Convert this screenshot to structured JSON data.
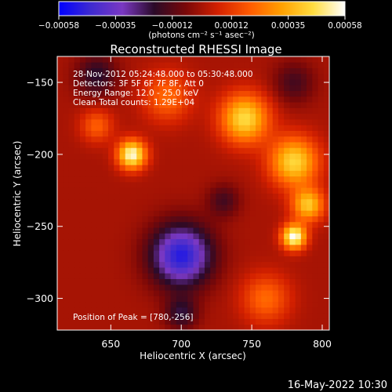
{
  "chart_data": {
    "type": "heatmap",
    "title": "Reconstructed RHESSI Image",
    "xlabel": "Heliocentric X (arcsec)",
    "ylabel": "Heliocentric Y (arcsec)",
    "xlim": [
      612,
      805
    ],
    "ylim": [
      -322,
      -132
    ],
    "x_ticks": [
      {
        "value": 650,
        "label": "650"
      },
      {
        "value": 700,
        "label": "700"
      },
      {
        "value": 750,
        "label": "750"
      },
      {
        "value": 800,
        "label": "800"
      }
    ],
    "y_ticks": [
      {
        "value": -150,
        "label": "−150"
      },
      {
        "value": -200,
        "label": "−200"
      },
      {
        "value": -250,
        "label": "−250"
      },
      {
        "value": -300,
        "label": "−300"
      }
    ],
    "colorbar": {
      "range": [
        -0.00058,
        0.00058
      ],
      "ticks": [
        {
          "value": -0.00058,
          "label": "−0.00058"
        },
        {
          "value": -0.00035,
          "label": "−0.00035"
        },
        {
          "value": -0.00012,
          "label": "−0.00012"
        },
        {
          "value": 0.00012,
          "label": "0.00012"
        },
        {
          "value": 0.00035,
          "label": "0.00035"
        },
        {
          "value": 0.00058,
          "label": "0.00058"
        }
      ],
      "unit_label": "(photons cm⁻² s⁻¹ asec⁻²)",
      "colormap": [
        "#0000ff",
        "#3e2ad0",
        "#7a38c2",
        "#2a0a28",
        "#7a0808",
        "#d32000",
        "#ff5a00",
        "#ffa000",
        "#ffdd40",
        "#ffffff"
      ]
    },
    "annotations": [
      "28-Nov-2012 05:24:48.000 to 05:30:48.000",
      "Detectors: 3F 5F 6F 7F 8F, Att 0",
      "Energy Range: 12.0 - 25.0 keV",
      "Clean     Total counts: 1.29E+04"
    ],
    "peak_label": "Position of Peak = [780,-256]",
    "peak": [
      780,
      -256
    ],
    "grid_size": [
      48,
      48
    ],
    "blobs": [
      {
        "x": 665,
        "y": -200,
        "amp": 0.00056,
        "sigma": 7
      },
      {
        "x": 780,
        "y": -257,
        "amp": 0.00058,
        "sigma": 6
      },
      {
        "x": 745,
        "y": -175,
        "amp": 0.00045,
        "sigma": 12
      },
      {
        "x": 780,
        "y": -205,
        "amp": 0.00044,
        "sigma": 12
      },
      {
        "x": 790,
        "y": -235,
        "amp": 0.0004,
        "sigma": 8
      },
      {
        "x": 690,
        "y": -160,
        "amp": 0.00022,
        "sigma": 12
      },
      {
        "x": 640,
        "y": -180,
        "amp": 0.0002,
        "sigma": 8
      },
      {
        "x": 760,
        "y": -300,
        "amp": 0.00022,
        "sigma": 12
      },
      {
        "x": 700,
        "y": -270,
        "amp": -0.0005,
        "sigma": 15
      },
      {
        "x": 640,
        "y": -145,
        "amp": -0.0002,
        "sigma": 10
      },
      {
        "x": 700,
        "y": -310,
        "amp": -0.0002,
        "sigma": 8
      },
      {
        "x": 780,
        "y": -150,
        "amp": -0.00015,
        "sigma": 10
      },
      {
        "x": 730,
        "y": -232,
        "amp": -0.00015,
        "sigma": 8
      }
    ]
  },
  "footer": {
    "timestamp": "16-May-2022 10:30"
  }
}
